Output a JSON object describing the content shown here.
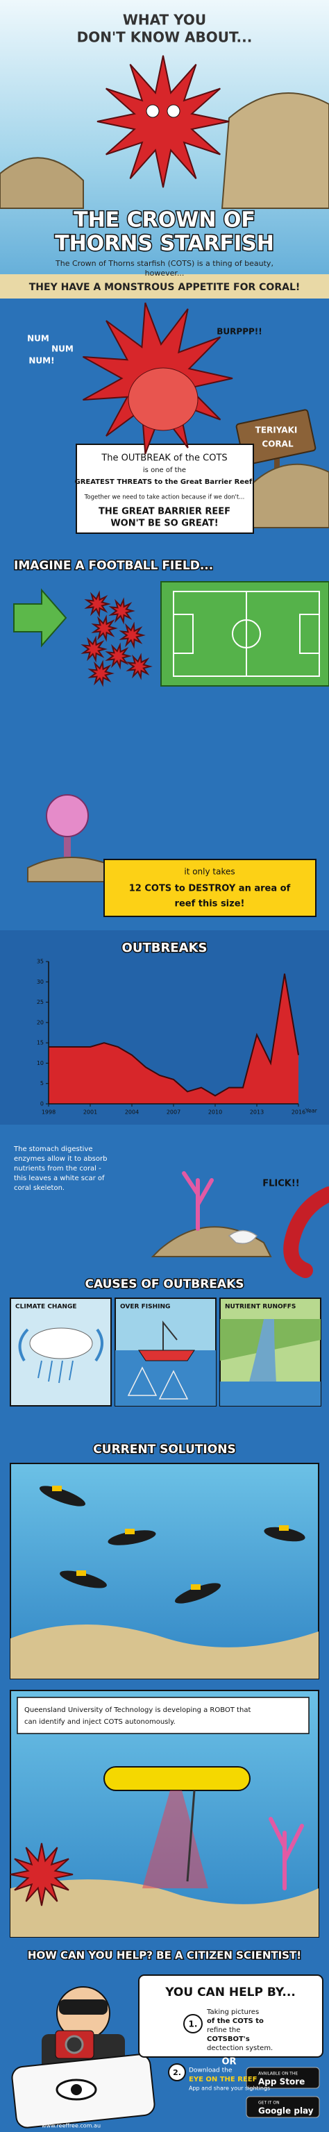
{
  "header": {
    "pretitle": [
      "WHAT YOU",
      "DON'T KNOW ABOUT..."
    ],
    "title": [
      "THE CROWN OF",
      "THORNS STARFISH"
    ],
    "intro": [
      "The Crown of Thorns starfish (COTS) is a thing of beauty,",
      "however..."
    ],
    "tagline": "THEY HAVE A MONSTROUS APPETITE FOR CORAL!"
  },
  "cartoon": {
    "sounds": [
      "NUM",
      "NUM",
      "NUM!"
    ],
    "burp": "BURPPP!!",
    "sign": [
      "TERIYAKI",
      "CORAL"
    ]
  },
  "threat_box": {
    "lines": [
      "The OUTBREAK of the COTS",
      "is one of the",
      "GREATEST THREATS to the Great Barrier Reef.",
      "Together we need to take action because if we don't...",
      "THE GREAT BARRIER REEF",
      "WON'T BE SO GREAT!"
    ]
  },
  "football": {
    "heading": "IMAGINE A FOOTBALL FIELD...",
    "note": [
      "it only takes",
      "12 COTS to DESTROY an area of",
      "reef this size!"
    ]
  },
  "chart_data": {
    "type": "area",
    "title": "OUTBREAKS",
    "x_label": "Year",
    "x": [
      1998,
      1999,
      2000,
      2001,
      2002,
      2003,
      2004,
      2005,
      2006,
      2007,
      2008,
      2009,
      2010,
      2011,
      2012,
      2013,
      2014,
      2015,
      2016
    ],
    "values": [
      14,
      14,
      14,
      14,
      15,
      14,
      12,
      9,
      7,
      6,
      3,
      4,
      2,
      4,
      4,
      17,
      10,
      32,
      12
    ],
    "color": "#d7262a",
    "xlim": [
      1998,
      2016
    ],
    "xticks": [
      1998,
      2001,
      2004,
      2007,
      2010,
      2013,
      2016
    ],
    "ylim": [
      0,
      35
    ],
    "yticks": [
      0,
      5,
      10,
      15,
      20,
      25,
      30,
      35
    ]
  },
  "digestion": {
    "text": [
      "The stomach digestive",
      "enzymes allow it to absorb",
      "nutrients from the coral -",
      "this leaves a white scar of",
      "coral skeleton."
    ],
    "sound": "FLICK!!"
  },
  "causes": {
    "heading": "CAUSES OF OUTBREAKS",
    "panels": [
      "CLIMATE CHANGE",
      "OVER FISHING",
      "NUTRIENT RUNOFFS"
    ]
  },
  "solutions": {
    "heading": "CURRENT SOLUTIONS",
    "robot_text": [
      "Queensland University of Technology is developing a ROBOT that",
      "can identify and inject COTS autonomously."
    ]
  },
  "help": {
    "heading": "HOW CAN YOU HELP? BE A CITIZEN SCIENTIST!",
    "lead": "YOU CAN HELP BY...",
    "step1": {
      "number": "1.",
      "lines": [
        "Taking pictures",
        "of the COTS to",
        "refine the",
        "COTSBOT's",
        "dectection system."
      ]
    },
    "or": "OR",
    "step2": {
      "number": "2.",
      "lines": [
        "Download the",
        "EYE ON THE REEF",
        "App and share your sightings"
      ]
    },
    "app_store": [
      "AVAILABLE ON THE",
      "App Store"
    ],
    "google_play": [
      "GET IT ON",
      "Google play"
    ],
    "website": "www.reeffree.com.au"
  }
}
